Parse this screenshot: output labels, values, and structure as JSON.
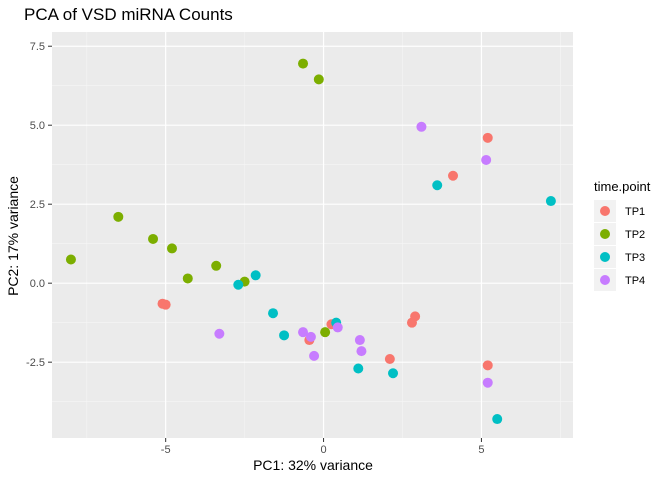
{
  "chart_data": {
    "type": "scatter",
    "title": "PCA of VSD miRNA Counts",
    "xlabel": "PC1: 32% variance",
    "ylabel": "PC2: 17% variance",
    "xlim": [
      -8.6,
      7.9
    ],
    "ylim": [
      -4.9,
      7.95
    ],
    "x_ticks": [
      -5,
      0,
      5
    ],
    "x_tick_labels": [
      "-5",
      "0",
      "5"
    ],
    "y_ticks": [
      -2.5,
      0.0,
      2.5,
      5.0,
      7.5
    ],
    "y_tick_labels": [
      "-2.5",
      "0.0",
      "2.5",
      "5.0",
      "7.5"
    ],
    "grid": true,
    "legend": {
      "title": "time.point",
      "placement": "right"
    },
    "series": [
      {
        "name": "TP1",
        "color": "#F8766D",
        "points": [
          [
            -5.1,
            -0.65
          ],
          [
            -5.0,
            -0.68
          ],
          [
            0.25,
            -1.3
          ],
          [
            -0.45,
            -1.8
          ],
          [
            2.8,
            -1.25
          ],
          [
            2.9,
            -1.05
          ],
          [
            2.1,
            -2.4
          ],
          [
            4.1,
            3.4
          ],
          [
            5.2,
            4.6
          ],
          [
            5.2,
            -2.6
          ]
        ]
      },
      {
        "name": "TP2",
        "color": "#7CAE00",
        "points": [
          [
            -8.0,
            0.75
          ],
          [
            -6.5,
            2.1
          ],
          [
            -5.4,
            1.4
          ],
          [
            -4.8,
            1.1
          ],
          [
            -4.3,
            0.15
          ],
          [
            -3.4,
            0.55
          ],
          [
            -2.5,
            0.05
          ],
          [
            0.05,
            -1.55
          ],
          [
            -0.65,
            6.95
          ],
          [
            -0.15,
            6.45
          ]
        ]
      },
      {
        "name": "TP3",
        "color": "#00BFC4",
        "points": [
          [
            -2.7,
            -0.05
          ],
          [
            -2.15,
            0.25
          ],
          [
            -1.6,
            -0.95
          ],
          [
            -1.25,
            -1.65
          ],
          [
            0.4,
            -1.25
          ],
          [
            1.1,
            -2.7
          ],
          [
            2.2,
            -2.85
          ],
          [
            3.6,
            3.1
          ],
          [
            7.2,
            2.6
          ],
          [
            5.5,
            -4.3
          ]
        ]
      },
      {
        "name": "TP4",
        "color": "#C77CFF",
        "points": [
          [
            -3.3,
            -1.6
          ],
          [
            -0.65,
            -1.55
          ],
          [
            -0.4,
            -1.7
          ],
          [
            -0.3,
            -2.3
          ],
          [
            0.45,
            -1.4
          ],
          [
            1.15,
            -1.8
          ],
          [
            1.2,
            -2.15
          ],
          [
            3.1,
            4.95
          ],
          [
            5.15,
            3.9
          ],
          [
            5.2,
            -3.15
          ]
        ]
      }
    ]
  }
}
